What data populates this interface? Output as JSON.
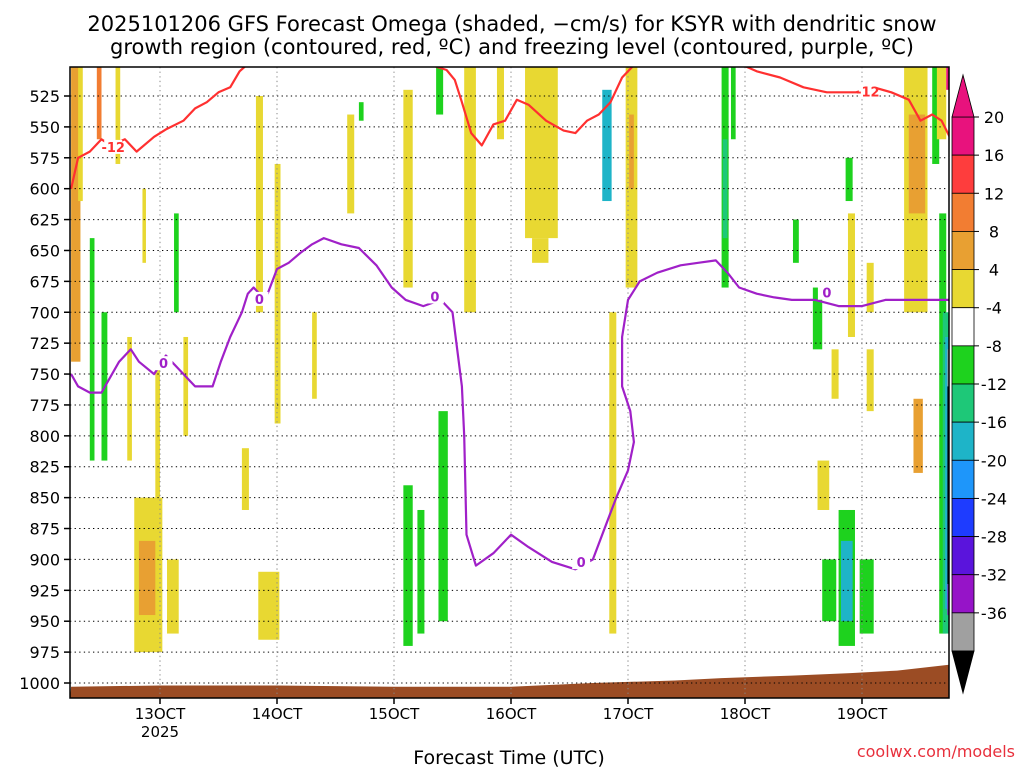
{
  "title_line1": "2025101206 GFS Forecast Omega (shaded, −cm/s) for KSYR with dendritic snow",
  "title_line2": "growth region (contoured, red, ºC) and freezing level (contoured, purple, ºC)",
  "xlabel": "Forecast Time (UTC)",
  "credit": "coolwx.com/models",
  "chart_data": {
    "type": "heatmap",
    "title": "2025101206 GFS Forecast Omega (shaded, −cm/s) for KSYR with dendritic snow growth region (contoured, red, ºC) and freezing level (contoured, purple, ºC)",
    "xlabel": "Forecast Time (UTC)",
    "ylabel": "",
    "x_ticks": [
      "13OCT",
      "14OCT",
      "15OCT",
      "16OCT",
      "17OCT",
      "18OCT",
      "19OCT"
    ],
    "x_year_label": "2025",
    "x_range_days": [
      12.24,
      19.76
    ],
    "y_ticks": [
      525,
      550,
      575,
      600,
      625,
      650,
      675,
      700,
      725,
      750,
      775,
      800,
      825,
      850,
      875,
      900,
      925,
      950,
      975,
      1000
    ],
    "y_range_hpa": [
      1008,
      500
    ],
    "y_axis": "pressure (hPa), reversed",
    "grid": true,
    "colorbar": {
      "labels": [
        20,
        16,
        12,
        8,
        4,
        -4,
        -8,
        -12,
        -16,
        -20,
        -24,
        -28,
        -32,
        -36
      ],
      "bands": [
        {
          "from": 20,
          "to": 24,
          "color": "#e8127d"
        },
        {
          "from": 16,
          "to": 20,
          "color": "#fe3d3d"
        },
        {
          "from": 12,
          "to": 16,
          "color": "#f27d32"
        },
        {
          "from": 8,
          "to": 12,
          "color": "#e8a032"
        },
        {
          "from": 4,
          "to": 8,
          "color": "#e8d832"
        },
        {
          "from": -4,
          "to": 4,
          "color": "#ffffff"
        },
        {
          "from": -8,
          "to": -4,
          "color": "#1ed21e"
        },
        {
          "from": -12,
          "to": -8,
          "color": "#1ec878"
        },
        {
          "from": -16,
          "to": -12,
          "color": "#1eb4c8"
        },
        {
          "from": -20,
          "to": -16,
          "color": "#1e96fa"
        },
        {
          "from": -24,
          "to": -20,
          "color": "#1e3cff"
        },
        {
          "from": -28,
          "to": -24,
          "color": "#5a14dc"
        },
        {
          "from": -32,
          "to": -28,
          "color": "#9614c8"
        },
        {
          "from": -36,
          "to": -32,
          "color": "#a0a0a0"
        }
      ],
      "top_arrow_color": "#e8127d",
      "bottom_arrow_color": "#000000"
    },
    "omega_cells": [
      {
        "t0": 12.24,
        "t1": 12.32,
        "p0": 500,
        "p1": 740,
        "color": "#e8a032"
      },
      {
        "t0": 12.3,
        "t1": 12.34,
        "p0": 500,
        "p1": 610,
        "color": "#e8d832"
      },
      {
        "t0": 12.4,
        "t1": 12.44,
        "p0": 640,
        "p1": 820,
        "color": "#1ed21e"
      },
      {
        "t0": 12.46,
        "t1": 12.5,
        "p0": 500,
        "p1": 560,
        "color": "#f27d32"
      },
      {
        "t0": 12.5,
        "t1": 12.55,
        "p0": 700,
        "p1": 820,
        "color": "#1ed21e"
      },
      {
        "t0": 12.62,
        "t1": 12.66,
        "p0": 500,
        "p1": 580,
        "color": "#e8d832"
      },
      {
        "t0": 12.72,
        "t1": 12.76,
        "p0": 720,
        "p1": 820,
        "color": "#e8d832"
      },
      {
        "t0": 12.85,
        "t1": 12.88,
        "p0": 600,
        "p1": 660,
        "color": "#e8d832"
      },
      {
        "t0": 12.96,
        "t1": 13.0,
        "p0": 740,
        "p1": 850,
        "color": "#e8d832"
      },
      {
        "t0": 13.12,
        "t1": 13.16,
        "p0": 620,
        "p1": 700,
        "color": "#1ed21e"
      },
      {
        "t0": 13.2,
        "t1": 13.24,
        "p0": 720,
        "p1": 800,
        "color": "#e8d832"
      },
      {
        "t0": 12.78,
        "t1": 13.02,
        "p0": 850,
        "p1": 975,
        "color": "#e8d832"
      },
      {
        "t0": 12.82,
        "t1": 12.96,
        "p0": 885,
        "p1": 945,
        "color": "#e8a032"
      },
      {
        "t0": 13.06,
        "t1": 13.16,
        "p0": 900,
        "p1": 960,
        "color": "#e8d832"
      },
      {
        "t0": 13.7,
        "t1": 13.76,
        "p0": 810,
        "p1": 860,
        "color": "#e8d832"
      },
      {
        "t0": 13.82,
        "t1": 13.88,
        "p0": 525,
        "p1": 700,
        "color": "#e8d832"
      },
      {
        "t0": 13.98,
        "t1": 14.03,
        "p0": 580,
        "p1": 790,
        "color": "#e8d832"
      },
      {
        "t0": 13.84,
        "t1": 14.02,
        "p0": 910,
        "p1": 965,
        "color": "#e8d832"
      },
      {
        "t0": 14.3,
        "t1": 14.34,
        "p0": 700,
        "p1": 770,
        "color": "#e8d832"
      },
      {
        "t0": 14.6,
        "t1": 14.66,
        "p0": 540,
        "p1": 620,
        "color": "#e8d832"
      },
      {
        "t0": 14.7,
        "t1": 14.74,
        "p0": 530,
        "p1": 545,
        "color": "#1ed21e"
      },
      {
        "t0": 15.08,
        "t1": 15.16,
        "p0": 520,
        "p1": 680,
        "color": "#e8d832"
      },
      {
        "t0": 15.08,
        "t1": 15.16,
        "p0": 840,
        "p1": 970,
        "color": "#1ed21e"
      },
      {
        "t0": 15.2,
        "t1": 15.26,
        "p0": 860,
        "p1": 960,
        "color": "#1ed21e"
      },
      {
        "t0": 15.36,
        "t1": 15.42,
        "p0": 500,
        "p1": 540,
        "color": "#1ed21e"
      },
      {
        "t0": 15.38,
        "t1": 15.46,
        "p0": 780,
        "p1": 950,
        "color": "#1ed21e"
      },
      {
        "t0": 15.6,
        "t1": 15.7,
        "p0": 500,
        "p1": 700,
        "color": "#e8d832"
      },
      {
        "t0": 15.88,
        "t1": 15.94,
        "p0": 500,
        "p1": 560,
        "color": "#e8d832"
      },
      {
        "t0": 16.12,
        "t1": 16.4,
        "p0": 500,
        "p1": 640,
        "color": "#e8d832"
      },
      {
        "t0": 16.18,
        "t1": 16.32,
        "p0": 640,
        "p1": 660,
        "color": "#e8d832"
      },
      {
        "t0": 16.78,
        "t1": 16.86,
        "p0": 520,
        "p1": 610,
        "color": "#1eb4c8"
      },
      {
        "t0": 16.84,
        "t1": 16.9,
        "p0": 700,
        "p1": 960,
        "color": "#e8d832"
      },
      {
        "t0": 16.98,
        "t1": 17.08,
        "p0": 500,
        "p1": 680,
        "color": "#e8d832"
      },
      {
        "t0": 17.01,
        "t1": 17.05,
        "p0": 540,
        "p1": 600,
        "color": "#e8a032"
      },
      {
        "t0": 17.8,
        "t1": 17.86,
        "p0": 500,
        "p1": 680,
        "color": "#1ed21e"
      },
      {
        "t0": 17.81,
        "t1": 17.85,
        "p0": 560,
        "p1": 640,
        "color": "#1ec878"
      },
      {
        "t0": 17.88,
        "t1": 17.92,
        "p0": 500,
        "p1": 560,
        "color": "#1ed21e"
      },
      {
        "t0": 18.41,
        "t1": 18.46,
        "p0": 625,
        "p1": 660,
        "color": "#1ed21e"
      },
      {
        "t0": 18.58,
        "t1": 18.66,
        "p0": 680,
        "p1": 730,
        "color": "#1ed21e"
      },
      {
        "t0": 18.74,
        "t1": 18.8,
        "p0": 730,
        "p1": 770,
        "color": "#e8d832"
      },
      {
        "t0": 18.86,
        "t1": 18.92,
        "p0": 575,
        "p1": 610,
        "color": "#1ed21e"
      },
      {
        "t0": 18.88,
        "t1": 18.94,
        "p0": 620,
        "p1": 720,
        "color": "#e8d832"
      },
      {
        "t0": 18.62,
        "t1": 18.72,
        "p0": 820,
        "p1": 860,
        "color": "#e8d832"
      },
      {
        "t0": 18.8,
        "t1": 18.94,
        "p0": 860,
        "p1": 970,
        "color": "#1ed21e"
      },
      {
        "t0": 18.82,
        "t1": 18.92,
        "p0": 885,
        "p1": 950,
        "color": "#1eb4c8"
      },
      {
        "t0": 18.98,
        "t1": 19.1,
        "p0": 900,
        "p1": 960,
        "color": "#1ed21e"
      },
      {
        "t0": 18.66,
        "t1": 18.78,
        "p0": 900,
        "p1": 950,
        "color": "#1ed21e"
      },
      {
        "t0": 19.04,
        "t1": 19.1,
        "p0": 660,
        "p1": 700,
        "color": "#e8d832"
      },
      {
        "t0": 19.04,
        "t1": 19.1,
        "p0": 730,
        "p1": 780,
        "color": "#e8d832"
      },
      {
        "t0": 19.36,
        "t1": 19.56,
        "p0": 500,
        "p1": 700,
        "color": "#e8d832"
      },
      {
        "t0": 19.4,
        "t1": 19.54,
        "p0": 540,
        "p1": 620,
        "color": "#e8a032"
      },
      {
        "t0": 19.44,
        "t1": 19.52,
        "p0": 770,
        "p1": 830,
        "color": "#e8a032"
      },
      {
        "t0": 19.6,
        "t1": 19.66,
        "p0": 500,
        "p1": 580,
        "color": "#1ed21e"
      },
      {
        "t0": 19.64,
        "t1": 19.72,
        "p0": 500,
        "p1": 560,
        "color": "#e8d832"
      },
      {
        "t0": 19.66,
        "t1": 19.72,
        "p0": 620,
        "p1": 960,
        "color": "#1ed21e"
      },
      {
        "t0": 19.69,
        "t1": 19.74,
        "p0": 700,
        "p1": 960,
        "color": "#1ec878"
      },
      {
        "t0": 19.71,
        "t1": 19.75,
        "p0": 720,
        "p1": 940,
        "color": "#1eb4c8"
      },
      {
        "t0": 19.72,
        "t1": 19.76,
        "p0": 500,
        "p1": 520,
        "color": "#e8127d"
      },
      {
        "t0": 19.73,
        "t1": 19.76,
        "p0": 730,
        "p1": 760,
        "color": "#a0a0a0"
      },
      {
        "t0": 19.73,
        "t1": 19.76,
        "p0": 760,
        "p1": 920,
        "color": "#000000"
      },
      {
        "t0": 19.73,
        "t1": 19.76,
        "p0": 920,
        "p1": 945,
        "color": "#9614c8"
      }
    ],
    "dgz_minus12_contour": {
      "color": "#ff3030",
      "label": "-12",
      "points": [
        [
          12.24,
          600
        ],
        [
          12.3,
          575
        ],
        [
          12.4,
          570
        ],
        [
          12.5,
          560
        ],
        [
          12.58,
          565
        ],
        [
          12.7,
          560
        ],
        [
          12.8,
          570
        ],
        [
          12.95,
          558
        ],
        [
          13.05,
          552
        ],
        [
          13.2,
          545
        ],
        [
          13.3,
          535
        ],
        [
          13.4,
          530
        ],
        [
          13.5,
          522
        ],
        [
          13.6,
          518
        ],
        [
          13.68,
          505
        ],
        [
          13.74,
          500
        ]
      ]
    },
    "dgz_minus12_contour_2": {
      "color": "#ff3030",
      "points": [
        [
          15.32,
          500
        ],
        [
          15.45,
          504
        ],
        [
          15.52,
          512
        ],
        [
          15.58,
          530
        ],
        [
          15.66,
          555
        ],
        [
          15.75,
          565
        ],
        [
          15.85,
          548
        ],
        [
          15.95,
          545
        ],
        [
          16.05,
          528
        ],
        [
          16.15,
          532
        ],
        [
          16.3,
          545
        ],
        [
          16.45,
          553
        ],
        [
          16.55,
          555
        ],
        [
          16.65,
          545
        ],
        [
          16.75,
          540
        ],
        [
          16.85,
          530
        ],
        [
          16.95,
          510
        ],
        [
          17.05,
          500
        ]
      ]
    },
    "dgz_minus12_contour_3": {
      "color": "#ff3030",
      "label": "-12",
      "points": [
        [
          17.98,
          500
        ],
        [
          18.1,
          505
        ],
        [
          18.3,
          510
        ],
        [
          18.5,
          518
        ],
        [
          18.7,
          522
        ],
        [
          18.95,
          522
        ],
        [
          19.1,
          518
        ],
        [
          19.25,
          522
        ],
        [
          19.4,
          528
        ],
        [
          19.5,
          545
        ],
        [
          19.6,
          540
        ],
        [
          19.68,
          545
        ],
        [
          19.76,
          560
        ]
      ]
    },
    "freezing_level_contour": {
      "color": "#a020c8",
      "label": "0",
      "points": [
        [
          12.24,
          750
        ],
        [
          12.3,
          760
        ],
        [
          12.4,
          765
        ],
        [
          12.5,
          765
        ],
        [
          12.65,
          740
        ],
        [
          12.75,
          730
        ],
        [
          12.82,
          740
        ],
        [
          12.95,
          750
        ],
        [
          13.05,
          735
        ],
        [
          13.15,
          745
        ],
        [
          13.3,
          760
        ],
        [
          13.45,
          760
        ],
        [
          13.52,
          740
        ],
        [
          13.6,
          720
        ],
        [
          13.7,
          700
        ],
        [
          13.75,
          685
        ],
        [
          13.8,
          680
        ],
        [
          13.9,
          690
        ],
        [
          14.0,
          665
        ],
        [
          14.1,
          660
        ],
        [
          14.2,
          652
        ],
        [
          14.3,
          645
        ],
        [
          14.4,
          640
        ],
        [
          14.55,
          645
        ],
        [
          14.7,
          648
        ],
        [
          14.85,
          662
        ],
        [
          14.98,
          680
        ],
        [
          15.1,
          690
        ],
        [
          15.25,
          695
        ],
        [
          15.4,
          690
        ],
        [
          15.5,
          700
        ],
        [
          15.58,
          760
        ],
        [
          15.6,
          800
        ],
        [
          15.62,
          880
        ],
        [
          15.7,
          905
        ],
        [
          15.85,
          895
        ],
        [
          16.0,
          880
        ],
        [
          16.15,
          890
        ],
        [
          16.35,
          902
        ],
        [
          16.55,
          908
        ],
        [
          16.7,
          900
        ],
        [
          16.82,
          870
        ],
        [
          16.9,
          850
        ],
        [
          17.0,
          828
        ],
        [
          17.05,
          805
        ],
        [
          17.02,
          780
        ],
        [
          16.95,
          760
        ],
        [
          16.95,
          720
        ],
        [
          17.0,
          690
        ],
        [
          17.1,
          675
        ],
        [
          17.25,
          668
        ],
        [
          17.45,
          662
        ],
        [
          17.6,
          660
        ],
        [
          17.75,
          658
        ],
        [
          17.85,
          668
        ],
        [
          17.95,
          680
        ],
        [
          18.1,
          685
        ],
        [
          18.25,
          688
        ],
        [
          18.4,
          690
        ],
        [
          18.6,
          690
        ],
        [
          18.8,
          695
        ],
        [
          19.0,
          695
        ],
        [
          19.2,
          690
        ],
        [
          19.4,
          690
        ],
        [
          19.6,
          690
        ],
        [
          19.76,
          690
        ]
      ]
    },
    "terrain_surface_hpa": [
      [
        12.24,
        1003
      ],
      [
        13.0,
        1002
      ],
      [
        14.0,
        1002
      ],
      [
        15.0,
        1003
      ],
      [
        16.0,
        1003
      ],
      [
        16.7,
        1000
      ],
      [
        17.4,
        998
      ],
      [
        17.8,
        996
      ],
      [
        18.4,
        994
      ],
      [
        18.9,
        992
      ],
      [
        19.3,
        990
      ],
      [
        19.76,
        985
      ]
    ],
    "terrain_color": "#9b4c24"
  }
}
